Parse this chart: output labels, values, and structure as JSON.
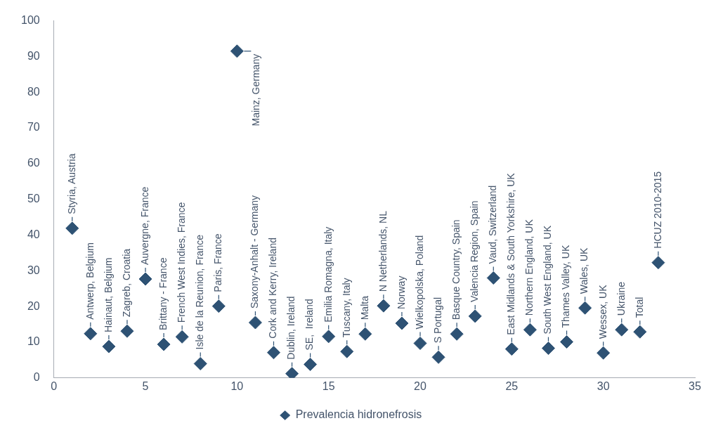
{
  "chart_data": {
    "type": "scatter",
    "x": [
      1,
      2,
      3,
      4,
      5,
      6,
      7,
      8,
      9,
      10,
      11,
      12,
      13,
      14,
      15,
      16,
      17,
      18,
      19,
      20,
      21,
      22,
      23,
      24,
      25,
      26,
      27,
      28,
      29,
      30,
      31,
      32,
      33
    ],
    "series": [
      {
        "name": "Prevalencia hidronefrosis",
        "color": "#2e5274",
        "values": [
          41.9,
          12.4,
          8.8,
          13.1,
          27.7,
          9.4,
          11.5,
          4.0,
          20.1,
          91.5,
          15.5,
          7.1,
          1.2,
          3.8,
          11.6,
          7.4,
          12.3,
          20.2,
          15.3,
          9.7,
          5.8,
          12.3,
          17.3,
          28.0,
          8.1,
          13.5,
          8.3,
          10.1,
          19.6,
          7.0,
          13.5,
          12.9,
          32.3
        ]
      }
    ],
    "marker": "diamond",
    "xlim": [
      0,
      35
    ],
    "xticks": [
      0,
      5,
      10,
      15,
      20,
      25,
      30,
      35
    ],
    "ylim": [
      0,
      100
    ],
    "yticks": [
      0,
      10,
      20,
      30,
      40,
      50,
      60,
      70,
      80,
      90,
      100
    ],
    "legend": "bottom",
    "annotations": [
      {
        "text": "Styria, Austria",
        "x": 1,
        "y": 41.9
      },
      {
        "text": "Antwerp, Belgium",
        "x": 2,
        "y": 12.4
      },
      {
        "text": "Hainaut, Belgium",
        "x": 3,
        "y": 8.8
      },
      {
        "text": "Zagreb, Croatia",
        "x": 4,
        "y": 13.1
      },
      {
        "text": "Auvergne, France",
        "x": 5,
        "y": 27.7
      },
      {
        "text": "Brittany - France",
        "x": 6,
        "y": 9.4
      },
      {
        "text": "French West Indies, France",
        "x": 7,
        "y": 11.5
      },
      {
        "text": "Isle de la Reunion, France",
        "x": 8,
        "y": 4.0
      },
      {
        "text": "Paris, France",
        "x": 9,
        "y": 20.1
      },
      {
        "text": "Mainz, Germany",
        "x": 10,
        "y": 91.5
      },
      {
        "text": "Saxony-Anhalt - Germany",
        "x": 11,
        "y": 15.5
      },
      {
        "text": "Cork and Kerry, Ireland",
        "x": 12,
        "y": 7.1
      },
      {
        "text": "Dublin, Ireland",
        "x": 13,
        "y": 1.2
      },
      {
        "text": "SE,  Ireland",
        "x": 14,
        "y": 3.8
      },
      {
        "text": "Emilia Romagna, Italy",
        "x": 15,
        "y": 11.6
      },
      {
        "text": "Tuscany, Italy",
        "x": 16,
        "y": 7.4
      },
      {
        "text": "Malta",
        "x": 17,
        "y": 12.3
      },
      {
        "text": "N Netherlands, NL",
        "x": 18,
        "y": 20.2
      },
      {
        "text": "Norway",
        "x": 19,
        "y": 15.3
      },
      {
        "text": "Wielkopolska, Poland",
        "x": 20,
        "y": 9.7
      },
      {
        "text": "S Portugal",
        "x": 21,
        "y": 5.8
      },
      {
        "text": "Basque Country, Spain",
        "x": 22,
        "y": 12.3
      },
      {
        "text": "Valencia Region, Spain",
        "x": 23,
        "y": 17.3
      },
      {
        "text": "Vaud, Switzerland",
        "x": 24,
        "y": 28.0
      },
      {
        "text": "East Midlands & South Yorkshire, UK",
        "x": 25,
        "y": 8.1
      },
      {
        "text": "Northern England, UK",
        "x": 26,
        "y": 13.5
      },
      {
        "text": "South West England, UK",
        "x": 27,
        "y": 8.3
      },
      {
        "text": "Thames Valley, UK",
        "x": 28,
        "y": 10.1
      },
      {
        "text": "Wales, UK",
        "x": 29,
        "y": 19.6
      },
      {
        "text": "Wessex, UK",
        "x": 30,
        "y": 7.0
      },
      {
        "text": "Ukraine",
        "x": 31,
        "y": 13.5
      },
      {
        "text": "Total",
        "x": 32,
        "y": 12.9
      },
      {
        "text": "HCUZ 2010-2015",
        "x": 33,
        "y": 32.3
      }
    ]
  }
}
